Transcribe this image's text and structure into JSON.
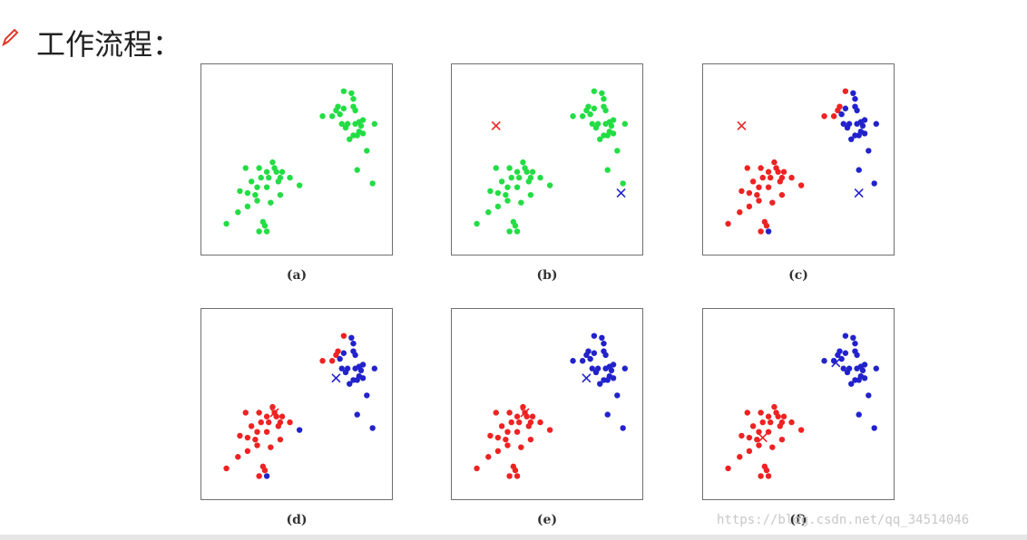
{
  "heading": {
    "text": "工作流程：",
    "icon": "pencil-icon"
  },
  "colors": {
    "green": "#22dd44",
    "red": "#ee2222",
    "blue": "#2222cc"
  },
  "panels": [
    {
      "caption": "(a)",
      "mode": "all_green",
      "centroids": []
    },
    {
      "caption": "(b)",
      "mode": "all_green",
      "centroids": [
        {
          "color": "red",
          "x": 2.3,
          "y": 6.8
        },
        {
          "color": "blue",
          "x": 8.8,
          "y": 3.3
        }
      ]
    },
    {
      "caption": "(c)",
      "mode": "assign",
      "assignment": "c",
      "centroids": [
        {
          "color": "red",
          "x": 2.0,
          "y": 6.8
        },
        {
          "color": "blue",
          "x": 8.1,
          "y": 3.3
        }
      ]
    },
    {
      "caption": "(d)",
      "mode": "assign",
      "assignment": "d",
      "centroids": [
        {
          "color": "red",
          "x": 3.8,
          "y": 4.6
        },
        {
          "color": "blue",
          "x": 7.0,
          "y": 6.4
        }
      ]
    },
    {
      "caption": "(e)",
      "mode": "assign",
      "assignment": "e",
      "centroids": [
        {
          "color": "red",
          "x": 3.8,
          "y": 4.6
        },
        {
          "color": "blue",
          "x": 7.0,
          "y": 6.4
        }
      ]
    },
    {
      "caption": "(f)",
      "mode": "assign",
      "assignment": "f",
      "centroids": [
        {
          "color": "red",
          "x": 3.1,
          "y": 3.3
        },
        {
          "color": "blue",
          "x": 6.9,
          "y": 7.2
        }
      ]
    }
  ],
  "chart_data": {
    "type": "scatter",
    "xlim": [
      0,
      10
    ],
    "ylim": [
      0,
      10
    ],
    "points_lower": [
      [
        1.3,
        1.7
      ],
      [
        1.9,
        2.3
      ],
      [
        2.4,
        2.6
      ],
      [
        2.9,
        2.9
      ],
      [
        2.4,
        3.3
      ],
      [
        2.9,
        3.6
      ],
      [
        3.4,
        3.6
      ],
      [
        2.6,
        3.9
      ],
      [
        3.1,
        4.1
      ],
      [
        3.5,
        4.1
      ],
      [
        3.4,
        4.4
      ],
      [
        3.9,
        4.4
      ],
      [
        2.3,
        4.6
      ],
      [
        3.0,
        4.6
      ],
      [
        3.8,
        4.6
      ],
      [
        3.7,
        4.9
      ],
      [
        4.1,
        4.1
      ],
      [
        4.6,
        4.1
      ],
      [
        4.2,
        4.4
      ],
      [
        4.0,
        3.9
      ],
      [
        5.1,
        3.7
      ],
      [
        3.6,
        2.8
      ],
      [
        2.8,
        3.2
      ],
      [
        3.0,
        1.3
      ],
      [
        3.3,
        1.6
      ],
      [
        3.4,
        1.3
      ],
      [
        3.2,
        1.8
      ],
      [
        2.0,
        3.4
      ],
      [
        4.1,
        3.2
      ]
    ],
    "points_upper": [
      [
        6.3,
        7.3
      ],
      [
        6.8,
        7.3
      ],
      [
        7.1,
        7.8
      ],
      [
        7.0,
        7.6
      ],
      [
        7.4,
        7.7
      ],
      [
        7.2,
        7.4
      ],
      [
        7.9,
        7.8
      ],
      [
        8.0,
        7.6
      ],
      [
        7.4,
        8.6
      ],
      [
        7.8,
        8.5
      ],
      [
        7.9,
        8.2
      ],
      [
        8.2,
        7.0
      ],
      [
        7.6,
        6.9
      ],
      [
        8.0,
        6.9
      ],
      [
        8.4,
        7.1
      ],
      [
        7.3,
        6.9
      ],
      [
        8.2,
        6.5
      ],
      [
        8.3,
        6.8
      ],
      [
        8.4,
        6.4
      ],
      [
        9.0,
        6.9
      ],
      [
        7.7,
        6.1
      ],
      [
        8.1,
        6.3
      ],
      [
        8.6,
        5.5
      ],
      [
        8.1,
        4.5
      ],
      [
        8.9,
        3.8
      ],
      [
        7.9,
        6.3
      ],
      [
        7.5,
        6.7
      ]
    ]
  },
  "watermark": "https://blog.csdn.net/qq_34514046"
}
